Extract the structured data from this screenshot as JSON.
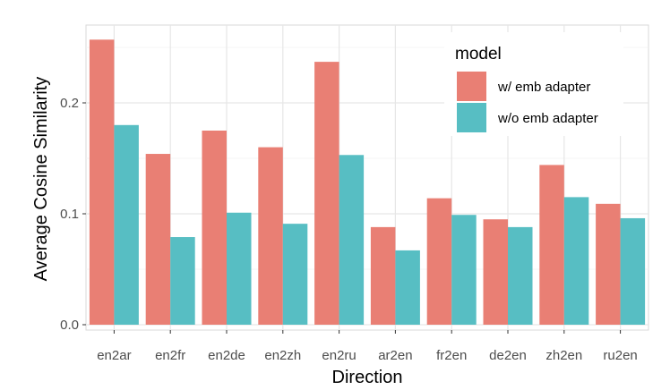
{
  "chart_data": {
    "type": "bar",
    "title": "",
    "xlabel": "Direction",
    "ylabel": "Average Cosine Similarity",
    "categories": [
      "en2ar",
      "en2fr",
      "en2de",
      "en2zh",
      "en2ru",
      "ar2en",
      "fr2en",
      "de2en",
      "zh2en",
      "ru2en"
    ],
    "series": [
      {
        "name": "w/ emb adapter",
        "color": "#E97F74",
        "values": [
          0.257,
          0.154,
          0.175,
          0.16,
          0.237,
          0.088,
          0.114,
          0.095,
          0.144,
          0.109
        ]
      },
      {
        "name": "w/o emb adapter",
        "color": "#57BEC3",
        "values": [
          0.18,
          0.079,
          0.101,
          0.091,
          0.153,
          0.067,
          0.099,
          0.088,
          0.115,
          0.096
        ]
      }
    ],
    "ylim": [
      0,
      0.27
    ],
    "yticks": [
      0.0,
      0.1,
      0.2
    ],
    "ytick_labels": [
      "0.0",
      "0.1",
      "0.2"
    ],
    "grid": true,
    "legend": {
      "title": "model",
      "placement": "top-right"
    }
  }
}
